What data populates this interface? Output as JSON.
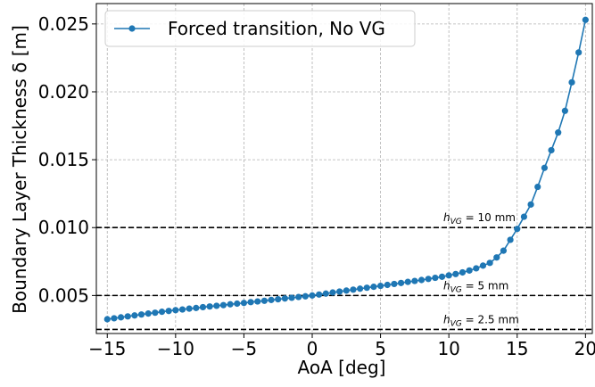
{
  "chart_data": {
    "type": "line",
    "xlabel": "AoA [deg]",
    "ylabel": "Boundary Layer Thickness δ [m]",
    "xlim": [
      -15.8,
      20.5
    ],
    "ylim": [
      0.0022,
      0.0265
    ],
    "xticks": [
      -15,
      -10,
      -5,
      0,
      5,
      10,
      15,
      20
    ],
    "xtick_labels": [
      "−15",
      "−10",
      "−5",
      "0",
      "5",
      "10",
      "15",
      "20"
    ],
    "yticks": [
      0.005,
      0.01,
      0.015,
      0.02,
      0.025
    ],
    "ytick_labels": [
      "0.005",
      "0.010",
      "0.015",
      "0.020",
      "0.025"
    ],
    "grid": true,
    "legend_position": "top-left",
    "series": [
      {
        "name": "Forced transition, No VG",
        "color": "#1f77b4",
        "marker": "circle",
        "x": [
          -15,
          -14.5,
          -14,
          -13.5,
          -13,
          -12.5,
          -12,
          -11.5,
          -11,
          -10.5,
          -10,
          -9.5,
          -9,
          -8.5,
          -8,
          -7.5,
          -7,
          -6.5,
          -6,
          -5.5,
          -5,
          -4.5,
          -4,
          -3.5,
          -3,
          -2.5,
          -2,
          -1.5,
          -1,
          -0.5,
          0,
          0.5,
          1,
          1.5,
          2,
          2.5,
          3,
          3.5,
          4,
          4.5,
          5,
          5.5,
          6,
          6.5,
          7,
          7.5,
          8,
          8.5,
          9,
          9.5,
          10,
          10.5,
          11,
          11.5,
          12,
          12.5,
          13,
          13.5,
          14,
          14.5,
          15,
          15.5,
          16,
          16.5,
          17,
          17.5,
          18,
          18.5,
          19,
          19.5,
          20
        ],
        "y": [
          0.00325,
          0.00332,
          0.00339,
          0.00346,
          0.00353,
          0.0036,
          0.00367,
          0.00373,
          0.0038,
          0.00386,
          0.00392,
          0.00397,
          0.00403,
          0.00408,
          0.00414,
          0.00419,
          0.00424,
          0.00429,
          0.00435,
          0.0044,
          0.00445,
          0.00451,
          0.00456,
          0.00461,
          0.00467,
          0.00472,
          0.00478,
          0.00483,
          0.00489,
          0.00494,
          0.005,
          0.00507,
          0.00514,
          0.00522,
          0.00529,
          0.00536,
          0.00543,
          0.0055,
          0.00557,
          0.00564,
          0.00571,
          0.00578,
          0.00585,
          0.00592,
          0.006,
          0.00607,
          0.00614,
          0.00622,
          0.0063,
          0.00638,
          0.00648,
          0.00658,
          0.0067,
          0.00684,
          0.007,
          0.0072,
          0.0074,
          0.0078,
          0.0083,
          0.0091,
          0.0099,
          0.0108,
          0.0117,
          0.013,
          0.0144,
          0.0157,
          0.017,
          0.0186,
          0.0207,
          0.0229,
          0.0253
        ]
      }
    ],
    "reference_lines": [
      {
        "y": 0.01,
        "label_prefix": "h",
        "label_sub": "VG",
        "label_suffix": " = 10 mm",
        "style": "dashed",
        "color": "#000000"
      },
      {
        "y": 0.005,
        "label_prefix": "h",
        "label_sub": "VG",
        "label_suffix": " = 5 mm",
        "style": "dashed",
        "color": "#000000"
      },
      {
        "y": 0.0025,
        "label_prefix": "h",
        "label_sub": "VG",
        "label_suffix": " = 2.5 mm",
        "style": "dashed",
        "color": "#000000"
      }
    ]
  }
}
